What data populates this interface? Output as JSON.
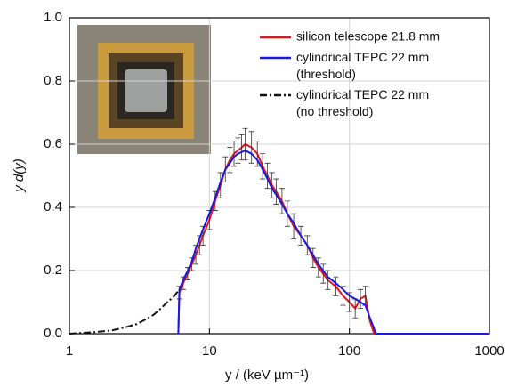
{
  "chart_data": {
    "type": "line",
    "x_label": "y / (keV µm⁻¹)",
    "y_label": "y d(y)",
    "xscale": "log",
    "xlim": [
      1,
      1000
    ],
    "xticks": [
      1,
      10,
      100,
      1000
    ],
    "ylim": [
      0,
      1
    ],
    "yticks": [
      {
        "value": 0,
        "label": "0.0"
      },
      0.2,
      0.4,
      0.6,
      0.8,
      {
        "value": 1,
        "label": "1.0"
      }
    ],
    "grid": true,
    "legend": "upper right",
    "series": [
      {
        "name": "silicon telescope 21.8 mm",
        "color": "#e8141c",
        "dash": "solid",
        "x": [
          6,
          6.1,
          6.5,
          7,
          7.5,
          8,
          8.5,
          9,
          10,
          11,
          12,
          13,
          14,
          15,
          16,
          17,
          18,
          20,
          22,
          24,
          26,
          28,
          30,
          33,
          36,
          40,
          45,
          50,
          55,
          60,
          65,
          70,
          80,
          90,
          100,
          110,
          120,
          130,
          140,
          150,
          1000
        ],
        "values": [
          0,
          0.13,
          0.16,
          0.19,
          0.22,
          0.25,
          0.28,
          0.31,
          0.36,
          0.42,
          0.47,
          0.52,
          0.55,
          0.57,
          0.58,
          0.59,
          0.6,
          0.59,
          0.57,
          0.53,
          0.5,
          0.47,
          0.45,
          0.42,
          0.38,
          0.34,
          0.31,
          0.28,
          0.24,
          0.21,
          0.19,
          0.17,
          0.15,
          0.12,
          0.1,
          0.08,
          0.11,
          0.12,
          0.04,
          0,
          0
        ],
        "errors": [
          null,
          0.02,
          0.02,
          0.02,
          0.02,
          0.03,
          0.03,
          0.03,
          0.03,
          0.03,
          0.04,
          0.04,
          0.04,
          0.04,
          0.04,
          0.04,
          0.05,
          0.05,
          0.04,
          0.04,
          0.04,
          0.04,
          0.04,
          0.04,
          0.04,
          0.04,
          0.03,
          0.03,
          0.03,
          0.03,
          0.03,
          0.03,
          0.03,
          0.03,
          0.03,
          0.03,
          0.03,
          0.03,
          null,
          null,
          null
        ]
      },
      {
        "name": "cylindrical TEPC 22 mm (threshold)",
        "color": "#1a1adf",
        "dash": "solid",
        "x": [
          6,
          6.1,
          6.5,
          7,
          7.5,
          8,
          9,
          10,
          11,
          12,
          13,
          14,
          15,
          16,
          18,
          20,
          22,
          24,
          26,
          28,
          30,
          33,
          36,
          40,
          45,
          50,
          55,
          60,
          70,
          80,
          90,
          100,
          110,
          120,
          130,
          140,
          155,
          1000
        ],
        "values": [
          0,
          0.14,
          0.17,
          0.2,
          0.23,
          0.27,
          0.33,
          0.38,
          0.43,
          0.48,
          0.52,
          0.54,
          0.56,
          0.57,
          0.58,
          0.57,
          0.55,
          0.52,
          0.49,
          0.46,
          0.44,
          0.41,
          0.38,
          0.35,
          0.31,
          0.28,
          0.25,
          0.22,
          0.18,
          0.16,
          0.14,
          0.12,
          0.11,
          0.1,
          0.09,
          0.05,
          0,
          0
        ]
      },
      {
        "name": "cylindrical TEPC 22 mm (no threshold)",
        "color": "#111111",
        "dash": "dashdot",
        "x": [
          1,
          1.5,
          2,
          2.5,
          3,
          3.5,
          4,
          4.5,
          5,
          5.5,
          6.1
        ],
        "values": [
          0,
          0.005,
          0.01,
          0.02,
          0.03,
          0.045,
          0.06,
          0.08,
          0.1,
          0.115,
          0.14
        ]
      }
    ]
  }
}
